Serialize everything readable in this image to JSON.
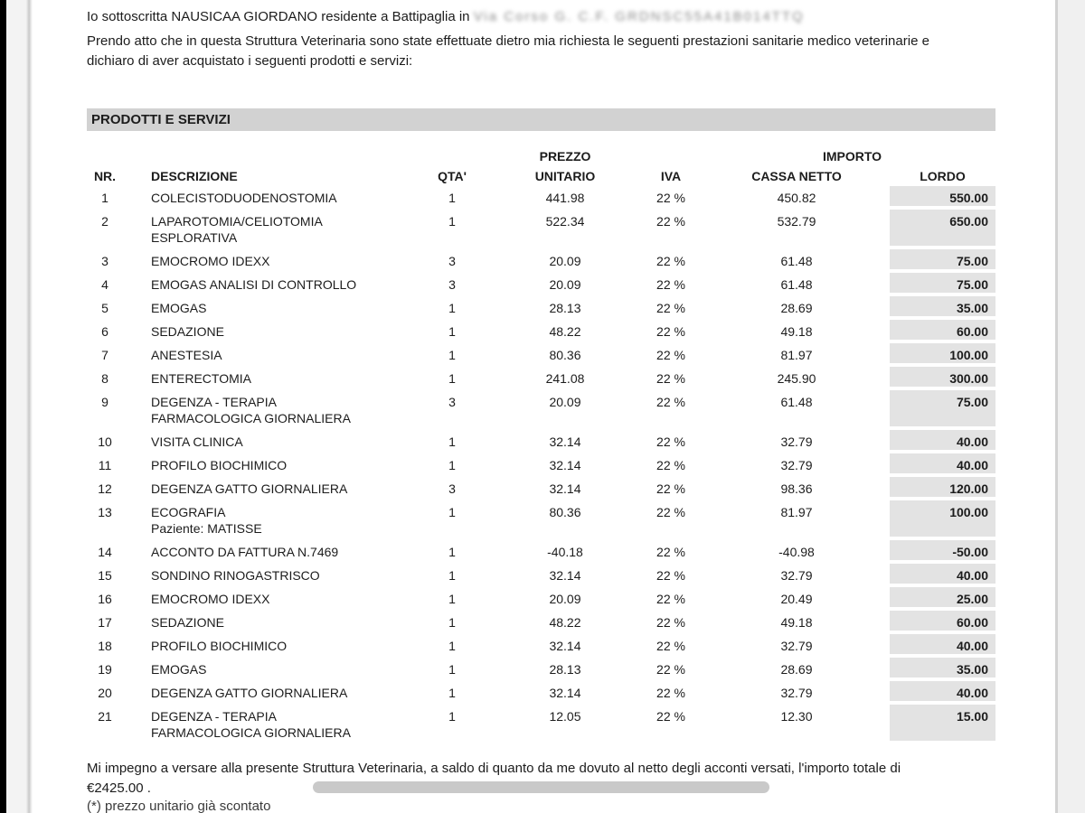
{
  "colors": {
    "section_bar": "#d2d2d2",
    "lordo_box": "#e3e3e3",
    "redaction_bar": "#c9c9c9",
    "page_bg": "#ffffff",
    "text": "#1c1c1c"
  },
  "intro": {
    "line1_prefix": "Io sottoscritta NAUSICAA GIORDANO residente a Battipaglia in ",
    "line1_redacted": "Via Corso G. C.F. GRDNSC55A41B014TTQ",
    "line2": "Prendo atto che in questa Struttura Veterinaria sono state effettuate dietro mia richiesta le seguenti prestazioni sanitarie medico veterinarie e",
    "line3": "dichiaro di aver acquistato i seguenti prodotti e servizi:"
  },
  "section_title": "PRODOTTI E SERVIZI",
  "table": {
    "columns": {
      "nr": "NR.",
      "descrizione": "DESCRIZIONE",
      "qta": "QTA'",
      "prezzo_group": "PREZZO",
      "unitario": "UNITARIO",
      "iva": "IVA",
      "importo_group": "IMPORTO",
      "cassa_netto": "CASSA NETTO",
      "lordo": "LORDO"
    },
    "rows": [
      {
        "nr": "1",
        "desc": "COLECISTODUODENOSTOMIA",
        "qta": "1",
        "prezzo": "441.98",
        "iva": "22 %",
        "netto": "450.82",
        "lordo": "550.00"
      },
      {
        "nr": "2",
        "desc": "LAPAROTOMIA/CELIOTOMIA",
        "desc2": "ESPLORATIVA",
        "qta": "1",
        "prezzo": "522.34",
        "iva": "22 %",
        "netto": "532.79",
        "lordo": "650.00"
      },
      {
        "nr": "3",
        "desc": "EMOCROMO IDEXX",
        "qta": "3",
        "prezzo": "20.09",
        "iva": "22 %",
        "netto": "61.48",
        "lordo": "75.00"
      },
      {
        "nr": "4",
        "desc": "EMOGAS ANALISI DI CONTROLLO",
        "qta": "3",
        "prezzo": "20.09",
        "iva": "22 %",
        "netto": "61.48",
        "lordo": "75.00"
      },
      {
        "nr": "5",
        "desc": "EMOGAS",
        "qta": "1",
        "prezzo": "28.13",
        "iva": "22 %",
        "netto": "28.69",
        "lordo": "35.00"
      },
      {
        "nr": "6",
        "desc": "SEDAZIONE",
        "qta": "1",
        "prezzo": "48.22",
        "iva": "22 %",
        "netto": "49.18",
        "lordo": "60.00"
      },
      {
        "nr": "7",
        "desc": "ANESTESIA",
        "qta": "1",
        "prezzo": "80.36",
        "iva": "22 %",
        "netto": "81.97",
        "lordo": "100.00"
      },
      {
        "nr": "8",
        "desc": "ENTERECTOMIA",
        "qta": "1",
        "prezzo": "241.08",
        "iva": "22 %",
        "netto": "245.90",
        "lordo": "300.00"
      },
      {
        "nr": "9",
        "desc": "DEGENZA - TERAPIA",
        "desc2": "FARMACOLOGICA GIORNALIERA",
        "qta": "3",
        "prezzo": "20.09",
        "iva": "22 %",
        "netto": "61.48",
        "lordo": "75.00"
      },
      {
        "nr": "10",
        "desc": "VISITA CLINICA",
        "qta": "1",
        "prezzo": "32.14",
        "iva": "22 %",
        "netto": "32.79",
        "lordo": "40.00"
      },
      {
        "nr": "11",
        "desc": "PROFILO BIOCHIMICO",
        "qta": "1",
        "prezzo": "32.14",
        "iva": "22 %",
        "netto": "32.79",
        "lordo": "40.00"
      },
      {
        "nr": "12",
        "desc": "DEGENZA GATTO GIORNALIERA",
        "qta": "3",
        "prezzo": "32.14",
        "iva": "22 %",
        "netto": "98.36",
        "lordo": "120.00"
      },
      {
        "nr": "13",
        "desc": "ECOGRAFIA",
        "desc2": "Paziente: MATISSE",
        "qta": "1",
        "prezzo": "80.36",
        "iva": "22 %",
        "netto": "81.97",
        "lordo": "100.00"
      },
      {
        "nr": "14",
        "desc": "ACCONTO DA FATTURA N.7469",
        "qta": "1",
        "prezzo": "-40.18",
        "iva": "22 %",
        "netto": "-40.98",
        "lordo": "-50.00"
      },
      {
        "nr": "15",
        "desc": "SONDINO RINOGASTRISCO",
        "qta": "1",
        "prezzo": "32.14",
        "iva": "22 %",
        "netto": "32.79",
        "lordo": "40.00"
      },
      {
        "nr": "16",
        "desc": "EMOCROMO IDEXX",
        "qta": "1",
        "prezzo": "20.09",
        "iva": "22 %",
        "netto": "20.49",
        "lordo": "25.00"
      },
      {
        "nr": "17",
        "desc": "SEDAZIONE",
        "qta": "1",
        "prezzo": "48.22",
        "iva": "22 %",
        "netto": "49.18",
        "lordo": "60.00"
      },
      {
        "nr": "18",
        "desc": "PROFILO BIOCHIMICO",
        "qta": "1",
        "prezzo": "32.14",
        "iva": "22 %",
        "netto": "32.79",
        "lordo": "40.00"
      },
      {
        "nr": "19",
        "desc": "EMOGAS",
        "qta": "1",
        "prezzo": "28.13",
        "iva": "22 %",
        "netto": "28.69",
        "lordo": "35.00"
      },
      {
        "nr": "20",
        "desc": "DEGENZA GATTO GIORNALIERA",
        "qta": "1",
        "prezzo": "32.14",
        "iva": "22 %",
        "netto": "32.79",
        "lordo": "40.00"
      },
      {
        "nr": "21",
        "desc": "DEGENZA - TERAPIA",
        "desc2": "FARMACOLOGICA GIORNALIERA",
        "qta": "1",
        "prezzo": "12.05",
        "iva": "22 %",
        "netto": "12.30",
        "lordo": "15.00"
      }
    ]
  },
  "footer": {
    "line1": "Mi impegno a versare alla presente Struttura Veterinaria, a saldo di quanto da me dovuto al netto degli acconti versati, l'importo totale di",
    "total": "€2425.00 .",
    "footnote": "(*) prezzo unitario già scontato"
  }
}
